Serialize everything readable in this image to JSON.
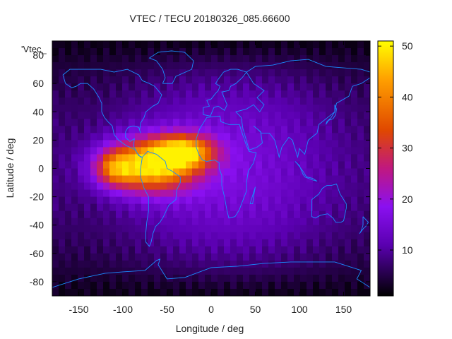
{
  "chart_data": {
    "type": "heatmap",
    "title": "VTEC / TECU 20180326_085.66600",
    "xlabel": "Longitude / deg",
    "ylabel": "Latitude / deg",
    "legend_key": "'Vtec_",
    "xlim": [
      -180,
      180
    ],
    "ylim": [
      -90,
      90
    ],
    "xticks": [
      -150,
      -100,
      -50,
      0,
      50,
      100,
      150
    ],
    "yticks": [
      -80,
      -60,
      -40,
      -20,
      0,
      20,
      40,
      60,
      80
    ],
    "colorbar": {
      "range": [
        1,
        51
      ],
      "ticks": [
        10,
        20,
        30,
        40,
        50
      ]
    },
    "grid": false,
    "anomaly": {
      "peak_value": 50,
      "peak_center_lon_lat": [
        -70,
        2
      ],
      "region_lon_range": [
        -150,
        15
      ],
      "region_lat_range": [
        -30,
        28
      ],
      "background_value": 12,
      "polar_min_value": 2
    },
    "coastline_color": "#1a8cff"
  }
}
